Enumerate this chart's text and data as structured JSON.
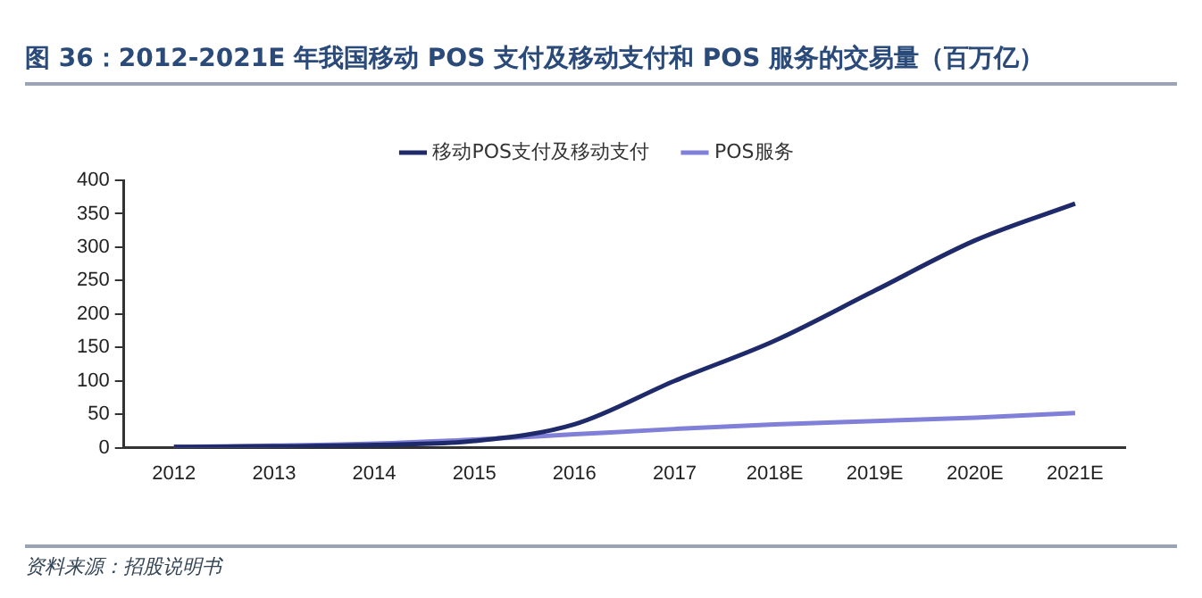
{
  "chart_data": {
    "type": "line",
    "title": "图 36：2012-2021E 年我国移动 POS 支付及移动支付和 POS 服务的交易量（百万亿）",
    "categories": [
      "2012",
      "2013",
      "2014",
      "2015",
      "2016",
      "2017",
      "2018E",
      "2019E",
      "2020E",
      "2021E"
    ],
    "series": [
      {
        "name": "移动POS支付及移动支付",
        "color": "#1f2a6b",
        "values": [
          1,
          2,
          4,
          10,
          35,
          100,
          160,
          235,
          310,
          365
        ]
      },
      {
        "name": "POS服务",
        "color": "#8080d8",
        "values": [
          1,
          3,
          6,
          12,
          20,
          28,
          35,
          40,
          45,
          52
        ]
      }
    ],
    "ylim": [
      0,
      400
    ],
    "yticks": [
      0,
      50,
      100,
      150,
      200,
      250,
      300,
      350,
      400
    ],
    "grid": false,
    "legend": "top",
    "marker": "none",
    "line_style": "solid",
    "annotations": [
      "资料来源：招股说明书"
    ]
  }
}
